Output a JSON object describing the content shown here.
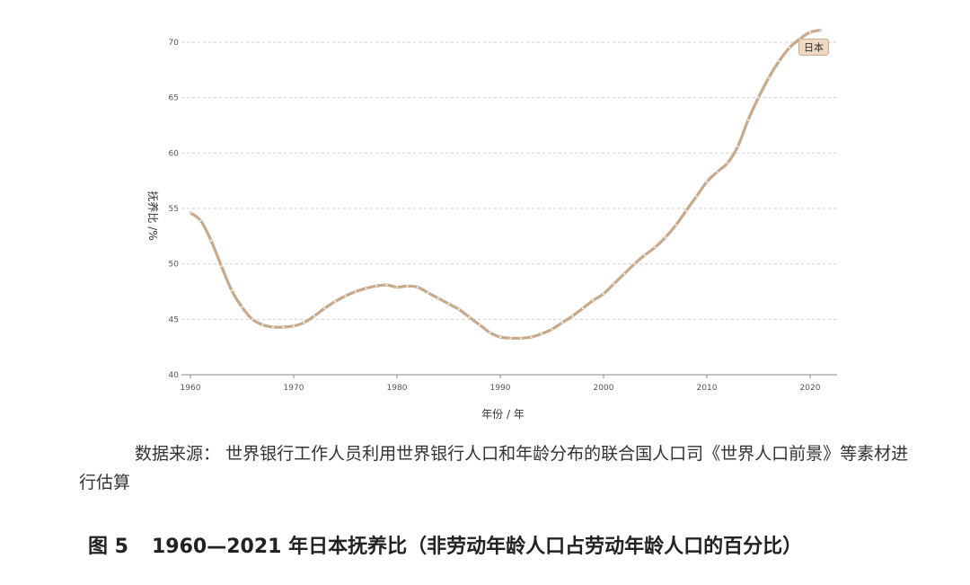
{
  "chart_data": {
    "type": "line",
    "title": "",
    "xlabel": "年份 / 年",
    "ylabel": "抚养比 /%",
    "xlim": [
      1959,
      2022
    ],
    "ylim": [
      40,
      71
    ],
    "x_ticks": [
      1960,
      1970,
      1980,
      1990,
      2000,
      2010,
      2020
    ],
    "y_ticks": [
      40,
      45,
      50,
      55,
      60,
      65,
      70
    ],
    "grid": "horizontal-dashed",
    "series": [
      {
        "name": "日本",
        "color": "#c8a98a",
        "x": [
          1960,
          1961,
          1962,
          1963,
          1964,
          1965,
          1966,
          1967,
          1968,
          1969,
          1970,
          1971,
          1972,
          1973,
          1974,
          1975,
          1976,
          1977,
          1978,
          1979,
          1980,
          1981,
          1982,
          1983,
          1984,
          1985,
          1986,
          1987,
          1988,
          1989,
          1990,
          1991,
          1992,
          1993,
          1994,
          1995,
          1996,
          1997,
          1998,
          1999,
          2000,
          2001,
          2002,
          2003,
          2004,
          2005,
          2006,
          2007,
          2008,
          2009,
          2010,
          2011,
          2012,
          2013,
          2014,
          2015,
          2016,
          2017,
          2018,
          2019,
          2020,
          2021
        ],
        "values": [
          54.6,
          53.9,
          52.1,
          49.8,
          47.6,
          46.1,
          45.0,
          44.5,
          44.3,
          44.3,
          44.4,
          44.7,
          45.3,
          46.0,
          46.6,
          47.1,
          47.5,
          47.8,
          48.0,
          48.1,
          47.9,
          48.0,
          47.9,
          47.4,
          46.9,
          46.4,
          45.9,
          45.2,
          44.5,
          43.8,
          43.4,
          43.3,
          43.3,
          43.4,
          43.7,
          44.1,
          44.7,
          45.3,
          46.0,
          46.7,
          47.3,
          48.2,
          49.1,
          50.0,
          50.8,
          51.5,
          52.4,
          53.5,
          54.8,
          56.1,
          57.4,
          58.3,
          59.1,
          60.6,
          63.0,
          65.0,
          66.8,
          68.3,
          69.5,
          70.3,
          70.9,
          71.1
        ]
      }
    ]
  },
  "source": {
    "label": "数据来源：",
    "text": "世界银行工作人员利用世界银行人口和年龄分布的联合国人口司《世界人口前景》等素材进行估算"
  },
  "caption": {
    "figure": "图 5",
    "text": "1960—2021 年日本抚养比（非劳动年龄人口占劳动年龄人口的百分比）"
  }
}
